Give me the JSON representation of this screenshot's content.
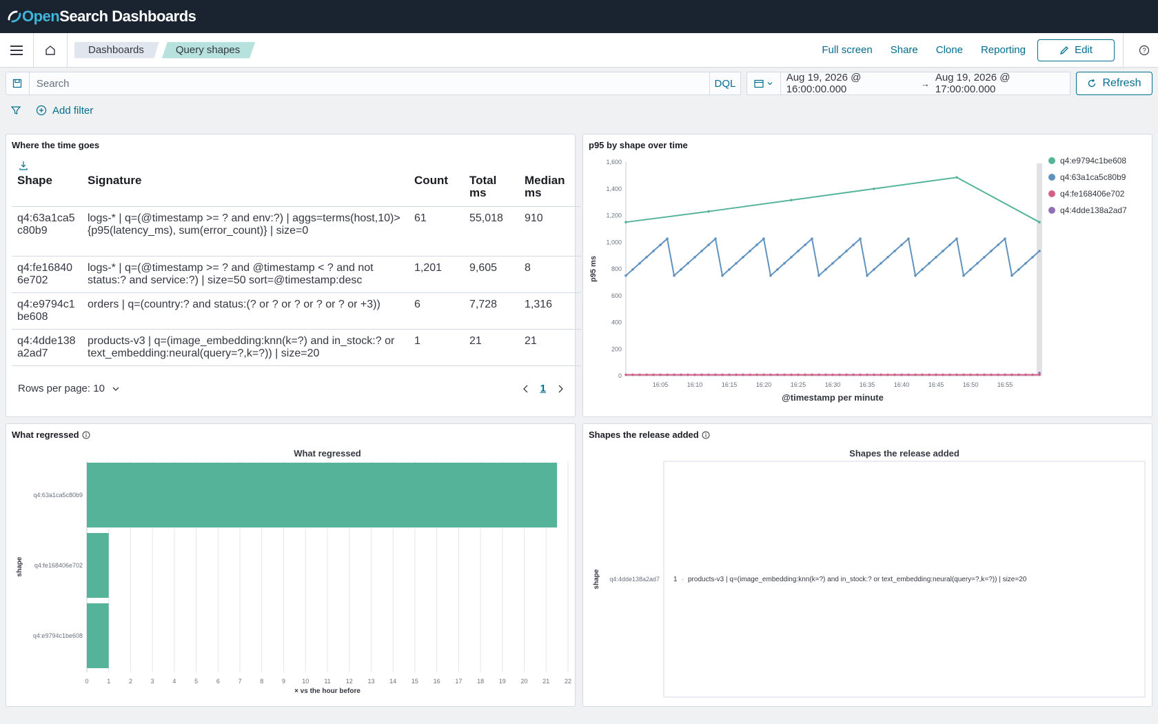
{
  "app": {
    "brand_prefix": "Open",
    "brand_suffix": "Search Dashboards"
  },
  "breadcrumbs": [
    "Dashboards",
    "Query shapes"
  ],
  "nav_actions": {
    "full_screen": "Full screen",
    "share": "Share",
    "clone": "Clone",
    "reporting": "Reporting",
    "edit": "Edit"
  },
  "query": {
    "placeholder": "Search",
    "language": "DQL",
    "start": "Aug 19, 2026 @ 16:00:00.000",
    "end": "Aug 19, 2026 @ 17:00:00.000",
    "refresh": "Refresh",
    "add_filter": "Add filter"
  },
  "panels": {
    "time_goes": {
      "title": "Where the time goes",
      "columns": [
        "Shape",
        "Signature",
        "Count",
        "Total ms",
        "Median ms"
      ],
      "rows": [
        [
          "q4:63a1ca5c80b9",
          "logs-* | q=(@timestamp >= ? and env:?) | aggs=terms(host,10)>{p95(latency_ms), sum(error_count)} | size=0",
          "61",
          "55,018",
          "910"
        ],
        [
          "q4:fe168406e702",
          "logs-* | q=(@timestamp >= ? and @timestamp < ? and not status:? and service:?) | size=50 sort=@timestamp:desc",
          "1,201",
          "9,605",
          "8"
        ],
        [
          "q4:e9794c1be608",
          "orders | q=(country:? and status:(? or ? or ? or ? or ? or +3))",
          "6",
          "7,728",
          "1,316"
        ],
        [
          "q4:4dde138a2ad7",
          "products-v3 | q=(image_embedding:knn(k=?) and in_stock:? or text_embedding:neural(query=?,k=?)) | size=20",
          "1",
          "21",
          "21"
        ]
      ],
      "rows_per_page": "Rows per page: 10",
      "page": "1"
    },
    "p95": {
      "title": "p95 by shape over time"
    },
    "regressed": {
      "title": "What regressed"
    },
    "added": {
      "title": "Shapes the release added"
    }
  },
  "colors": {
    "green": "#54b399",
    "blue": "#6092c0",
    "pink": "#d36086",
    "purple": "#9170b8"
  },
  "chart_data": [
    {
      "type": "line",
      "title": "",
      "xlabel": "@timestamp per minute",
      "ylabel": "p95 ms",
      "ylim": [
        0,
        1600
      ],
      "yticks": [
        "0",
        "200",
        "400",
        "600",
        "800",
        "1,000",
        "1,200",
        "1,400",
        "1,600"
      ],
      "xticks": [
        "16:05",
        "16:10",
        "16:15",
        "16:20",
        "16:25",
        "16:30",
        "16:35",
        "16:40",
        "16:45",
        "16:50",
        "16:55"
      ],
      "legend_position": "top-right",
      "series": [
        {
          "name": "q4:e9794c1be608",
          "color": "#54b399",
          "x": [
            0,
            12,
            24,
            36,
            48,
            60
          ],
          "y": [
            1150,
            1230,
            1315,
            1400,
            1485,
            1150
          ]
        },
        {
          "name": "q4:63a1ca5c80b9",
          "color": "#6092c0",
          "pattern": {
            "period": 7,
            "start": 750,
            "step": 46,
            "end_minute": 60
          }
        },
        {
          "name": "q4:fe168406e702",
          "color": "#d36086",
          "constant": 8,
          "minutes": 61
        },
        {
          "name": "q4:4dde138a2ad7",
          "color": "#9170b8",
          "x": [
            60
          ],
          "y": [
            21
          ]
        }
      ]
    },
    {
      "type": "bar",
      "orientation": "horizontal",
      "title": "What regressed",
      "xlabel": "× vs the hour before",
      "ylabel": "shape",
      "xlim": [
        0,
        22
      ],
      "xticks": [
        "0",
        "1",
        "2",
        "3",
        "4",
        "5",
        "6",
        "7",
        "8",
        "9",
        "10",
        "11",
        "12",
        "13",
        "14",
        "15",
        "16",
        "17",
        "18",
        "19",
        "20",
        "21",
        "22"
      ],
      "categories": [
        "q4:63a1ca5c80b9",
        "q4:fe168406e702",
        "q4:e9794c1be608"
      ],
      "values": [
        21.5,
        1,
        1
      ]
    },
    {
      "type": "table",
      "title": "Shapes the release added",
      "ylabel": "shape",
      "categories": [
        "q4:4dde138a2ad7"
      ],
      "values": [
        1
      ],
      "labels": [
        "products-v3 | q=(image_embedding:knn(k=?) and in_stock:? or text_embedding:neural(query=?,k=?)) | size=20"
      ]
    }
  ]
}
